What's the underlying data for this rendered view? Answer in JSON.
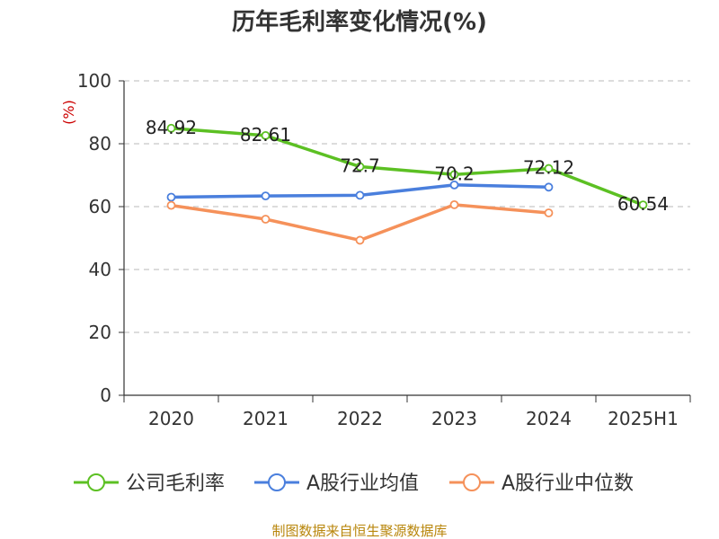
{
  "chart_data": {
    "type": "line",
    "title": "历年毛利率变化情况(%)",
    "xlabel": "",
    "ylabel": "(%)",
    "ylim": [
      0,
      100
    ],
    "yticks": [
      0,
      20,
      40,
      60,
      80,
      100
    ],
    "categories": [
      "2020",
      "2021",
      "2022",
      "2023",
      "2024",
      "2025H1"
    ],
    "grid": true,
    "legend_position": "bottom",
    "series": [
      {
        "name": "公司毛利率",
        "color": "#5cc023",
        "values": [
          84.92,
          82.61,
          72.7,
          70.2,
          72.12,
          60.54
        ],
        "labels": [
          "84.92",
          "82.61",
          "72.7",
          "70.2",
          "72.12",
          "60.54"
        ]
      },
      {
        "name": "A股行业均值",
        "color": "#4a7fdd",
        "values": [
          63.0,
          63.4,
          63.6,
          66.9,
          66.2,
          null
        ]
      },
      {
        "name": "A股行业中位数",
        "color": "#f5915a",
        "values": [
          60.4,
          56.0,
          49.3,
          60.6,
          58.0,
          null
        ]
      }
    ],
    "source": "制图数据来自恒生聚源数据库"
  }
}
